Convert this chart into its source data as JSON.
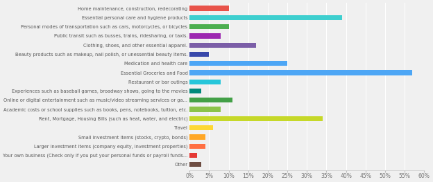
{
  "categories": [
    "Home maintenance, construction, redecorating",
    "Essential personal care and hygiene products",
    "Personal modes of transportation such as cars, motorcycles, or bicycles",
    "Public transit such as busses, trains, ridesharing, or taxis.",
    "Clothing, shoes, and other essential apparel.",
    "Beauty products such as makeup, nail polish, or unessential beauty items.",
    "Medication and health care",
    "Essential Groceries and Food",
    "Restaurant or bar outings",
    "Experiences such as baseball games, broadway shows, going to the movies",
    "Online or digital entertainment such as music/video streaming services or ga...",
    "Academic costs or school supplies such as books, pens, notebooks, tuition, etc.",
    "Rent, Mortgage, Housing Bills (such as heat, water, and electric)",
    "Travel",
    "Small investment items (stocks, crypto, bonds)",
    "Larger investment items (company equity, investment properties)",
    "Your own business (Check only if you put your personal funds or payroll funds...",
    "Other"
  ],
  "values": [
    10,
    39,
    10,
    8,
    17,
    5,
    25,
    57,
    8,
    3,
    11,
    8,
    34,
    6,
    4,
    4,
    2,
    3
  ],
  "colors": [
    "#e8534a",
    "#3ecfcf",
    "#4caf50",
    "#9c27b0",
    "#7b5ea7",
    "#3949ab",
    "#4da6f5",
    "#4da6f5",
    "#26c6da",
    "#00897b",
    "#43a047",
    "#8bc34a",
    "#c6d829",
    "#fdd835",
    "#ffa726",
    "#ff7043",
    "#e53935",
    "#6d4c41"
  ],
  "xlim": [
    0,
    60
  ],
  "xtick_values": [
    0,
    5,
    10,
    15,
    20,
    25,
    30,
    35,
    40,
    45,
    50,
    55,
    60
  ],
  "xtick_labels": [
    "0%",
    "5%",
    "10%",
    "15%",
    "20%",
    "25%",
    "30%",
    "35%",
    "40%",
    "45%",
    "50%",
    "55%",
    "60%"
  ],
  "bg_color": "#f0f0f0",
  "bar_height": 0.55,
  "label_fontsize": 4.8,
  "tick_fontsize": 5.5,
  "figsize": [
    6.24,
    2.63
  ],
  "dpi": 100
}
